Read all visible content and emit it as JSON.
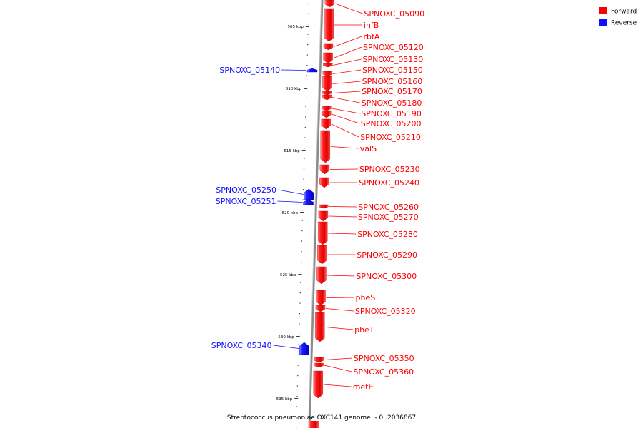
{
  "caption": "Streptococcus pneumoniae OXC141 genome. - 0..2036867",
  "colors": {
    "forward": "#ff0000",
    "reverse": "#1010ff",
    "forward_light": "#ff9a9a",
    "reverse_light": "#8a8aff",
    "backbone": "#8c8c8c"
  },
  "legend": {
    "forward_label": "Forward",
    "reverse_label": "Reverse"
  },
  "ticks": [
    "505 kbp",
    "510 kbp",
    "515 kbp",
    "520 kbp",
    "525 kbp",
    "530 kbp",
    "535 kbp"
  ],
  "genes": [
    {
      "name": "SPNOXC_05090",
      "strand": "forward"
    },
    {
      "name": "infB",
      "strand": "forward"
    },
    {
      "name": "rbfA",
      "strand": "forward"
    },
    {
      "name": "SPNOXC_05120",
      "strand": "forward"
    },
    {
      "name": "SPNOXC_05130",
      "strand": "forward"
    },
    {
      "name": "SPNOXC_05140",
      "strand": "reverse"
    },
    {
      "name": "SPNOXC_05150",
      "strand": "forward"
    },
    {
      "name": "SPNOXC_05160",
      "strand": "forward"
    },
    {
      "name": "SPNOXC_05170",
      "strand": "forward"
    },
    {
      "name": "SPNOXC_05180",
      "strand": "forward"
    },
    {
      "name": "SPNOXC_05190",
      "strand": "forward"
    },
    {
      "name": "SPNOXC_05200",
      "strand": "forward"
    },
    {
      "name": "SPNOXC_05210",
      "strand": "forward"
    },
    {
      "name": "valS",
      "strand": "forward"
    },
    {
      "name": "SPNOXC_05230",
      "strand": "forward"
    },
    {
      "name": "SPNOXC_05240",
      "strand": "forward"
    },
    {
      "name": "SPNOXC_05250",
      "strand": "reverse"
    },
    {
      "name": "SPNOXC_05251",
      "strand": "reverse"
    },
    {
      "name": "SPNOXC_05260",
      "strand": "forward"
    },
    {
      "name": "SPNOXC_05270",
      "strand": "forward"
    },
    {
      "name": "SPNOXC_05280",
      "strand": "forward"
    },
    {
      "name": "SPNOXC_05290",
      "strand": "forward"
    },
    {
      "name": "SPNOXC_05300",
      "strand": "forward"
    },
    {
      "name": "pheS",
      "strand": "forward"
    },
    {
      "name": "SPNOXC_05320",
      "strand": "forward"
    },
    {
      "name": "pheT",
      "strand": "forward"
    },
    {
      "name": "SPNOXC_05340",
      "strand": "reverse"
    },
    {
      "name": "SPNOXC_05350",
      "strand": "forward"
    },
    {
      "name": "SPNOXC_05360",
      "strand": "forward"
    },
    {
      "name": "metE",
      "strand": "forward"
    }
  ]
}
